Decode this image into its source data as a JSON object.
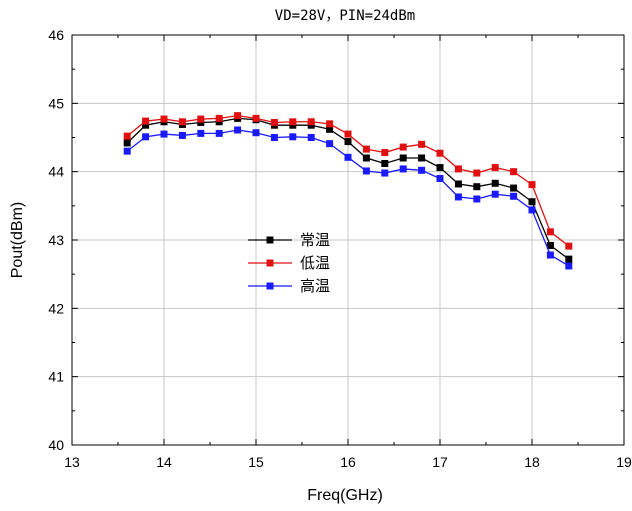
{
  "chart_data": {
    "type": "line",
    "title": "VD=28V，PIN=24dBm",
    "xlabel": "Freq(GHz)",
    "ylabel": "Pout(dBm)",
    "xlim": [
      13,
      19
    ],
    "ylim": [
      40,
      46
    ],
    "xticks": [
      13,
      14,
      15,
      16,
      17,
      18,
      19
    ],
    "yticks": [
      40,
      41,
      42,
      43,
      44,
      45,
      46
    ],
    "grid": true,
    "legend_position": "center-left",
    "x": [
      13.6,
      13.8,
      14.0,
      14.2,
      14.4,
      14.6,
      14.8,
      15.0,
      15.2,
      15.4,
      15.6,
      15.8,
      16.0,
      16.2,
      16.4,
      16.6,
      16.8,
      17.0,
      17.2,
      17.4,
      17.6,
      17.8,
      18.0,
      18.2,
      18.4
    ],
    "series": [
      {
        "name": "常温",
        "color": "#000000",
        "marker": "square",
        "values": [
          44.42,
          44.68,
          44.73,
          44.69,
          44.72,
          44.73,
          44.78,
          44.76,
          44.68,
          44.68,
          44.68,
          44.62,
          44.44,
          44.2,
          44.12,
          44.2,
          44.2,
          44.06,
          43.82,
          43.78,
          43.83,
          43.76,
          43.56,
          42.92,
          42.72
        ]
      },
      {
        "name": "低温",
        "color": "#e01010",
        "marker": "square",
        "values": [
          44.52,
          44.74,
          44.77,
          44.73,
          44.77,
          44.78,
          44.82,
          44.78,
          44.72,
          44.73,
          44.73,
          44.7,
          44.55,
          44.33,
          44.28,
          44.36,
          44.4,
          44.27,
          44.04,
          43.98,
          44.06,
          44.0,
          43.81,
          43.12,
          42.91
        ]
      },
      {
        "name": "高温",
        "color": "#1a1aff",
        "marker": "square",
        "values": [
          44.3,
          44.51,
          44.55,
          44.53,
          44.56,
          44.56,
          44.61,
          44.57,
          44.5,
          44.51,
          44.5,
          44.41,
          44.21,
          44.01,
          43.98,
          44.04,
          44.02,
          43.9,
          43.63,
          43.6,
          43.67,
          43.64,
          43.44,
          42.78,
          42.62
        ]
      }
    ]
  }
}
